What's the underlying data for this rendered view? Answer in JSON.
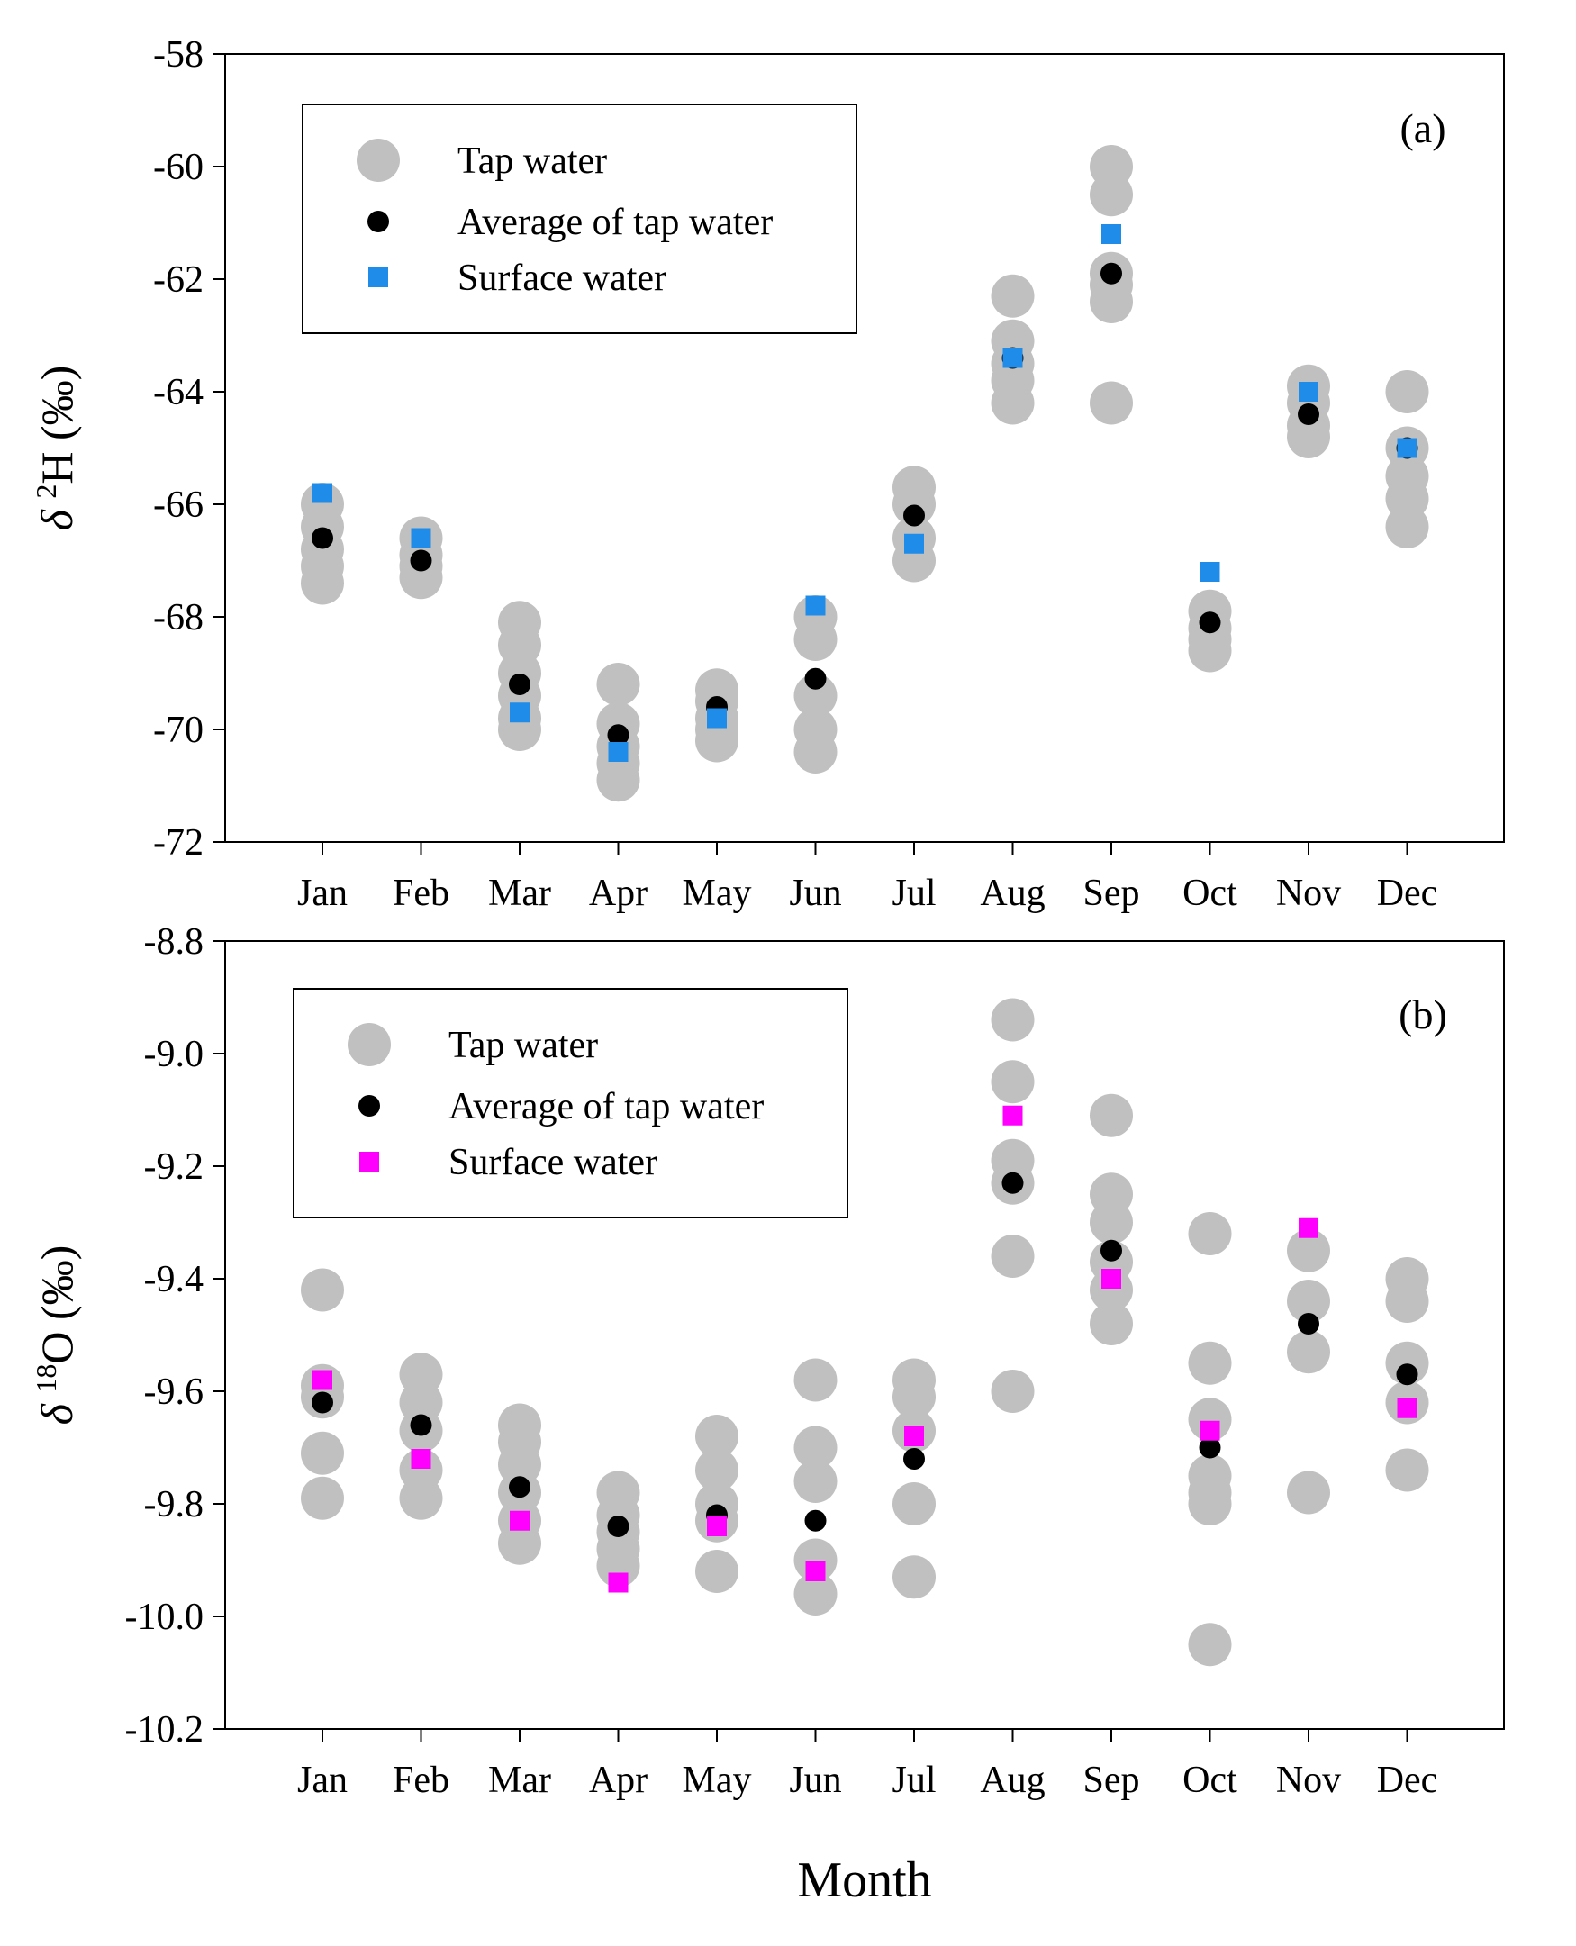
{
  "chart_data": [
    {
      "type": "scatter",
      "panel_label": "(a)",
      "ylabel": {
        "symbol": "δ",
        "superscript": "2",
        "rest": "H (‰)"
      },
      "ylim": [
        -72,
        -58
      ],
      "yticks": [
        -72,
        -70,
        -68,
        -66,
        -64,
        -62,
        -60,
        -58
      ],
      "ytick_labels": [
        "-72",
        "-70",
        "-68",
        "-66",
        "-64",
        "-62",
        "-60",
        "-58"
      ],
      "categories": [
        "Jan",
        "Feb",
        "Mar",
        "Apr",
        "May",
        "Jun",
        "Jul",
        "Aug",
        "Sep",
        "Oct",
        "Nov",
        "Dec"
      ],
      "legend": {
        "position": "top-left",
        "entries": [
          "Tap water",
          "Average of tap water",
          "Surface water"
        ]
      },
      "colors": {
        "tap": "#c0c0c0",
        "average": "#000000",
        "surface": "#1e8ce8"
      },
      "series": [
        {
          "name": "Tap water",
          "values": [
            [
              -66.0,
              -66.4,
              -66.8,
              -67.1,
              -67.4
            ],
            [
              -66.6,
              -66.9,
              -67.1,
              -67.3
            ],
            [
              -68.1,
              -68.5,
              -69.0,
              -69.4,
              -69.8,
              -70.0
            ],
            [
              -69.2,
              -69.9,
              -70.3,
              -70.6,
              -70.9
            ],
            [
              -69.3,
              -69.5,
              -69.8,
              -70.0,
              -70.2
            ],
            [
              -68.0,
              -68.4,
              -69.4,
              -70.0,
              -70.4
            ],
            [
              -65.7,
              -66.0,
              -66.6,
              -67.0
            ],
            [
              -62.3,
              -63.1,
              -63.5,
              -63.8,
              -64.2
            ],
            [
              -60.0,
              -60.5,
              -61.9,
              -62.1,
              -62.4,
              -64.2
            ],
            [
              -67.9,
              -68.2,
              -68.4,
              -68.6
            ],
            [
              -63.9,
              -64.2,
              -64.6,
              -64.8
            ],
            [
              -64.0,
              -65.0,
              -65.5,
              -65.9,
              -66.4
            ]
          ]
        },
        {
          "name": "Average of tap water",
          "values": [
            -66.6,
            -67.0,
            -69.2,
            -70.1,
            -69.6,
            -69.1,
            -66.2,
            -63.4,
            -61.9,
            -68.1,
            -64.4,
            -65.0
          ]
        },
        {
          "name": "Surface water",
          "values": [
            -65.8,
            -66.6,
            -69.7,
            -70.4,
            -69.8,
            -67.8,
            -66.7,
            -63.4,
            -61.2,
            -67.2,
            -64.0,
            -65.0
          ]
        }
      ]
    },
    {
      "type": "scatter",
      "panel_label": "(b)",
      "ylabel": {
        "symbol": "δ",
        "superscript": "18",
        "rest": "O (‰)"
      },
      "ylim": [
        -10.2,
        -8.8
      ],
      "yticks": [
        -10.2,
        -10.0,
        -9.8,
        -9.6,
        -9.4,
        -9.2,
        -9.0,
        -8.8
      ],
      "ytick_labels": [
        "-10.2",
        "-10.0",
        "-9.8",
        "-9.6",
        "-9.4",
        "-9.2",
        "-9.0",
        "-8.8"
      ],
      "categories": [
        "Jan",
        "Feb",
        "Mar",
        "Apr",
        "May",
        "Jun",
        "Jul",
        "Aug",
        "Sep",
        "Oct",
        "Nov",
        "Dec"
      ],
      "xlabel": "Month",
      "legend": {
        "position": "top-left",
        "entries": [
          "Tap water",
          "Average of tap water",
          "Surface water"
        ]
      },
      "colors": {
        "tap": "#c0c0c0",
        "average": "#000000",
        "surface": "#ff00ff"
      },
      "series": [
        {
          "name": "Tap water",
          "values": [
            [
              -9.42,
              -9.59,
              -9.61,
              -9.71,
              -9.79
            ],
            [
              -9.57,
              -9.62,
              -9.67,
              -9.74,
              -9.79
            ],
            [
              -9.66,
              -9.69,
              -9.73,
              -9.78,
              -9.83,
              -9.87
            ],
            [
              -9.78,
              -9.82,
              -9.85,
              -9.88,
              -9.91
            ],
            [
              -9.68,
              -9.74,
              -9.8,
              -9.83,
              -9.92
            ],
            [
              -9.58,
              -9.7,
              -9.76,
              -9.9,
              -9.96
            ],
            [
              -9.58,
              -9.61,
              -9.67,
              -9.8,
              -9.93
            ],
            [
              -8.94,
              -9.05,
              -9.19,
              -9.23,
              -9.36,
              -9.6
            ],
            [
              -9.11,
              -9.25,
              -9.3,
              -9.37,
              -9.42,
              -9.48
            ],
            [
              -9.32,
              -9.55,
              -9.65,
              -9.75,
              -9.78,
              -9.8,
              -10.05
            ],
            [
              -9.35,
              -9.44,
              -9.53,
              -9.78
            ],
            [
              -9.4,
              -9.44,
              -9.55,
              -9.62,
              -9.74
            ]
          ]
        },
        {
          "name": "Average of tap water",
          "values": [
            -9.62,
            -9.66,
            -9.77,
            -9.84,
            -9.82,
            -9.83,
            -9.72,
            -9.23,
            -9.35,
            -9.7,
            -9.48,
            -9.57
          ]
        },
        {
          "name": "Surface water",
          "values": [
            -9.58,
            -9.72,
            -9.83,
            -9.94,
            -9.84,
            -9.92,
            -9.68,
            -9.11,
            -9.4,
            -9.67,
            -9.31,
            -9.63
          ]
        }
      ]
    }
  ]
}
